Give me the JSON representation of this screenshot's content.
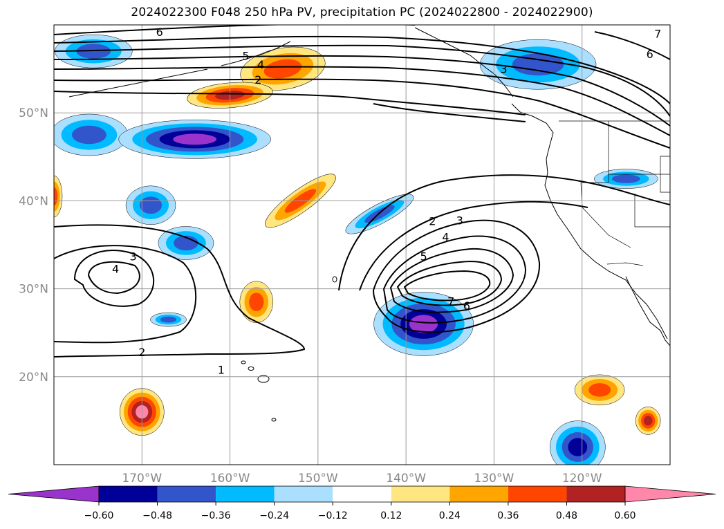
{
  "chart_data": {
    "type": "map-contour",
    "title": "2024022300 F048 250 hPa PV, precipitation PC (2024022800 - 2024022900)",
    "lat_ticks": [
      {
        "value": 50,
        "label": "50°N"
      },
      {
        "value": 40,
        "label": "40°N"
      },
      {
        "value": 30,
        "label": "30°N"
      },
      {
        "value": 20,
        "label": "20°N"
      }
    ],
    "lon_ticks": [
      {
        "value": -170,
        "label": "170°W"
      },
      {
        "value": -160,
        "label": "160°W"
      },
      {
        "value": -150,
        "label": "150°W"
      },
      {
        "value": -140,
        "label": "140°W"
      },
      {
        "value": -130,
        "label": "130°W"
      },
      {
        "value": -120,
        "label": "120°W"
      }
    ],
    "extent": {
      "lon": [
        -180,
        -110
      ],
      "lat": [
        10,
        60
      ]
    },
    "grid": true,
    "colorbar": {
      "levels": [
        -0.6,
        -0.48,
        -0.36,
        -0.24,
        -0.12,
        0.12,
        0.24,
        0.36,
        0.48,
        0.6
      ],
      "tick_labels": [
        "−0.60",
        "−0.48",
        "−0.36",
        "−0.24",
        "−0.12",
        "0.12",
        "0.24",
        "0.36",
        "0.48",
        "0.60"
      ],
      "colors": [
        "#9933cc",
        "#000099",
        "#3355cc",
        "#00bbff",
        "#aadfff",
        "#ffffff",
        "#ffe680",
        "#ffa500",
        "#ff4500",
        "#b22222",
        "#ff88aa"
      ],
      "extend": "both"
    },
    "contour_labels": [
      {
        "text": "6",
        "lon": -168,
        "lat": 59.2
      },
      {
        "text": "5",
        "lon": -158.2,
        "lat": 56.5
      },
      {
        "text": "4",
        "lon": -156.5,
        "lat": 55.5
      },
      {
        "text": "2",
        "lon": -156.8,
        "lat": 53.8
      },
      {
        "text": "3",
        "lon": -128.9,
        "lat": 55
      },
      {
        "text": "7",
        "lon": -111.4,
        "lat": 59
      },
      {
        "text": "6",
        "lon": -112.3,
        "lat": 56.7
      },
      {
        "text": "2",
        "lon": -137,
        "lat": 37.7
      },
      {
        "text": "3",
        "lon": -133.9,
        "lat": 37.8
      },
      {
        "text": "4",
        "lon": -135.5,
        "lat": 35.9
      },
      {
        "text": "5",
        "lon": -138,
        "lat": 33.7
      },
      {
        "text": "7",
        "lon": -134.9,
        "lat": 28.6
      },
      {
        "text": "6",
        "lon": -133.1,
        "lat": 28.1
      },
      {
        "text": "3",
        "lon": -171,
        "lat": 33.7
      },
      {
        "text": "4",
        "lon": -173,
        "lat": 32.3
      },
      {
        "text": "2",
        "lon": -170,
        "lat": 22.8
      },
      {
        "text": "1",
        "lon": -161,
        "lat": 20.8
      }
    ],
    "positive_blobs": [
      {
        "lon": -154,
        "lat": 55,
        "max": 0.36
      },
      {
        "lon": -160,
        "lat": 52,
        "max": 0.48
      },
      {
        "lon": -152,
        "lat": 40,
        "max": 0.36
      },
      {
        "lon": -157,
        "lat": 28.5,
        "max": 0.36
      },
      {
        "lon": -170,
        "lat": 16,
        "max": 0.6
      },
      {
        "lon": -118,
        "lat": 18.5,
        "max": 0.36
      },
      {
        "lon": -112.5,
        "lat": 15,
        "max": 0.48
      },
      {
        "lon": -180,
        "lat": 40.5,
        "max": 0.36
      }
    ],
    "negative_blobs": [
      {
        "lon": -175.5,
        "lat": 57,
        "max": -0.36
      },
      {
        "lon": -176,
        "lat": 47.5,
        "max": -0.36
      },
      {
        "lon": -164,
        "lat": 47,
        "max": -0.6
      },
      {
        "lon": -169,
        "lat": 39.5,
        "max": -0.36
      },
      {
        "lon": -165,
        "lat": 35.2,
        "max": -0.36
      },
      {
        "lon": -143,
        "lat": 38.5,
        "max": -0.36
      },
      {
        "lon": -138,
        "lat": 26,
        "max": -0.6
      },
      {
        "lon": -125,
        "lat": 55.5,
        "max": -0.36
      },
      {
        "lon": -120.5,
        "lat": 12,
        "max": -0.48
      },
      {
        "lon": -115,
        "lat": 42.5,
        "max": -0.36
      },
      {
        "lon": -167,
        "lat": 26.5,
        "max": -0.36
      }
    ]
  }
}
